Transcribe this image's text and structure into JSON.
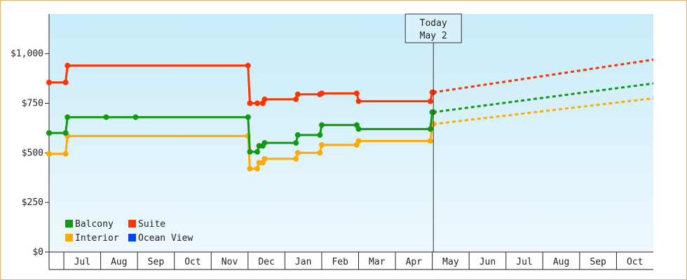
{
  "chart_data": {
    "type": "line",
    "title": "",
    "xlabel": "",
    "ylabel": "",
    "ylim": [
      0,
      1200
    ],
    "y_ticks": [
      {
        "value": 0,
        "label": "$0"
      },
      {
        "value": 250,
        "label": "$250"
      },
      {
        "value": 500,
        "label": "$500"
      },
      {
        "value": 750,
        "label": "$750"
      },
      {
        "value": 1000,
        "label": "$1,000"
      }
    ],
    "x_months": [
      "Jul",
      "Aug",
      "Sep",
      "Oct",
      "Nov",
      "Dec",
      "Jan",
      "Feb",
      "Mar",
      "Apr",
      "May",
      "Jun",
      "Jul",
      "Aug",
      "Sep",
      "Oct"
    ],
    "x_range": [
      -0.4,
      16.0
    ],
    "today": {
      "line1": "Today",
      "line2": "May 2",
      "x": 10.03
    },
    "background": {
      "top": "#c8ecfa",
      "bottom": "#eef8fd"
    },
    "legend": {
      "position": "bottom-left"
    },
    "series": [
      {
        "name": "Balcony",
        "color": "#119911",
        "points": [
          [
            -0.4,
            600
          ],
          [
            0.05,
            600
          ],
          [
            0.1,
            680
          ],
          [
            1.15,
            680
          ],
          [
            1.95,
            680
          ],
          [
            5.0,
            680
          ],
          [
            5.05,
            505
          ],
          [
            5.25,
            505
          ],
          [
            5.3,
            535
          ],
          [
            5.4,
            535
          ],
          [
            5.45,
            550
          ],
          [
            6.3,
            550
          ],
          [
            6.35,
            590
          ],
          [
            6.95,
            590
          ],
          [
            7.0,
            640
          ],
          [
            7.95,
            640
          ],
          [
            8.0,
            620
          ],
          [
            9.95,
            620
          ],
          [
            10.0,
            705
          ],
          [
            10.03,
            705
          ]
        ],
        "markers": [
          [
            -0.4,
            600
          ],
          [
            0.05,
            600
          ],
          [
            0.1,
            680
          ],
          [
            1.15,
            680
          ],
          [
            1.95,
            680
          ],
          [
            5.0,
            680
          ],
          [
            5.05,
            505
          ],
          [
            5.25,
            505
          ],
          [
            5.3,
            535
          ],
          [
            5.4,
            535
          ],
          [
            5.45,
            550
          ],
          [
            6.3,
            550
          ],
          [
            6.35,
            590
          ],
          [
            6.95,
            590
          ],
          [
            7.0,
            640
          ],
          [
            7.95,
            640
          ],
          [
            8.0,
            620
          ],
          [
            9.95,
            620
          ],
          [
            10.0,
            705
          ],
          [
            10.03,
            705
          ]
        ],
        "forecast": [
          [
            10.03,
            705
          ],
          [
            16.0,
            850
          ]
        ]
      },
      {
        "name": "Suite",
        "color": "#ff3300",
        "points": [
          [
            -0.4,
            855
          ],
          [
            0.05,
            855
          ],
          [
            0.1,
            940
          ],
          [
            5.0,
            940
          ],
          [
            5.05,
            750
          ],
          [
            5.25,
            750
          ],
          [
            5.3,
            750
          ],
          [
            5.4,
            750
          ],
          [
            5.45,
            770
          ],
          [
            6.3,
            770
          ],
          [
            6.35,
            795
          ],
          [
            6.95,
            795
          ],
          [
            7.0,
            800
          ],
          [
            7.95,
            800
          ],
          [
            8.0,
            760
          ],
          [
            9.95,
            760
          ],
          [
            10.0,
            805
          ],
          [
            10.03,
            805
          ]
        ],
        "markers": [
          [
            -0.4,
            855
          ],
          [
            0.05,
            855
          ],
          [
            0.1,
            940
          ],
          [
            5.0,
            940
          ],
          [
            5.05,
            750
          ],
          [
            5.25,
            750
          ],
          [
            5.4,
            750
          ],
          [
            5.45,
            770
          ],
          [
            6.3,
            770
          ],
          [
            6.35,
            795
          ],
          [
            6.95,
            795
          ],
          [
            7.0,
            800
          ],
          [
            7.95,
            800
          ],
          [
            8.0,
            760
          ],
          [
            9.95,
            760
          ],
          [
            10.0,
            805
          ],
          [
            10.03,
            805
          ]
        ],
        "forecast": [
          [
            10.03,
            805
          ],
          [
            16.0,
            970
          ]
        ]
      },
      {
        "name": "Interior",
        "color": "#ffaa00",
        "points": [
          [
            -0.4,
            495
          ],
          [
            0.05,
            495
          ],
          [
            0.1,
            585
          ],
          [
            5.0,
            585
          ],
          [
            5.05,
            420
          ],
          [
            5.25,
            420
          ],
          [
            5.3,
            450
          ],
          [
            5.4,
            450
          ],
          [
            5.45,
            470
          ],
          [
            6.3,
            470
          ],
          [
            6.35,
            500
          ],
          [
            6.95,
            500
          ],
          [
            7.0,
            540
          ],
          [
            7.95,
            540
          ],
          [
            8.0,
            560
          ],
          [
            9.95,
            560
          ],
          [
            10.0,
            645
          ],
          [
            10.03,
            645
          ]
        ],
        "markers": [
          [
            -0.4,
            495
          ],
          [
            0.05,
            495
          ],
          [
            0.1,
            585
          ],
          [
            5.0,
            585
          ],
          [
            5.05,
            420
          ],
          [
            5.25,
            420
          ],
          [
            5.3,
            450
          ],
          [
            5.4,
            450
          ],
          [
            5.45,
            470
          ],
          [
            6.3,
            470
          ],
          [
            6.35,
            500
          ],
          [
            6.95,
            500
          ],
          [
            7.0,
            540
          ],
          [
            7.95,
            540
          ],
          [
            8.0,
            560
          ],
          [
            9.95,
            560
          ],
          [
            10.0,
            645
          ],
          [
            10.03,
            645
          ]
        ],
        "forecast": [
          [
            10.03,
            645
          ],
          [
            16.0,
            775
          ]
        ]
      },
      {
        "name": "Ocean View",
        "color": "#0044ff",
        "points": [],
        "markers": [],
        "forecast": []
      }
    ],
    "legend_order": [
      "Balcony",
      "Suite",
      "Interior",
      "Ocean View"
    ]
  }
}
